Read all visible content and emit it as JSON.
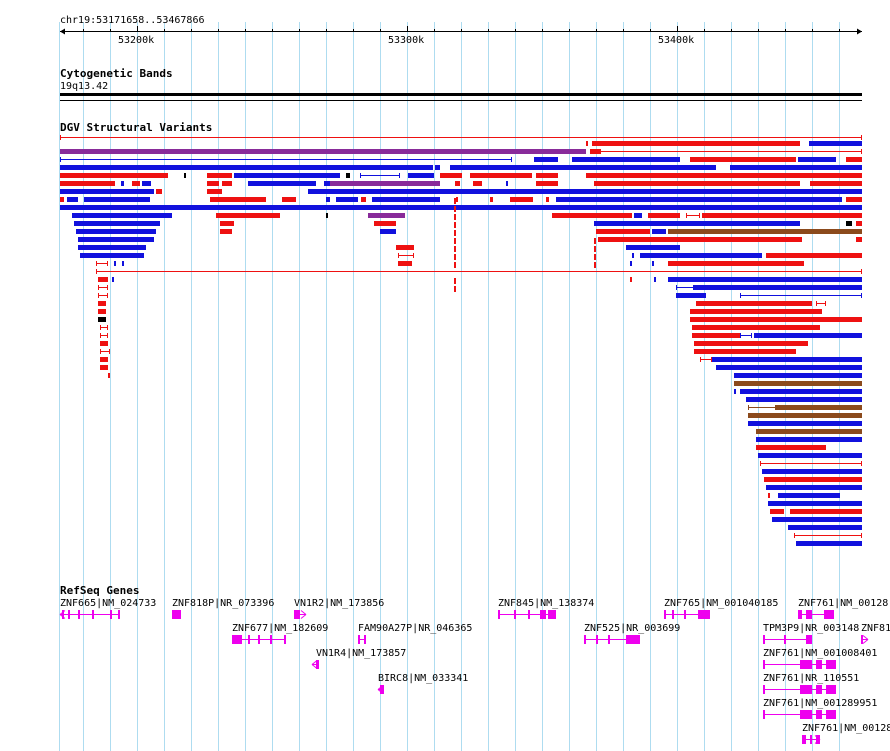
{
  "position": "chr19:53171658..53467866",
  "ruler_ticks": [
    "53200k",
    "53300k",
    "53400k"
  ],
  "tracks": {
    "cytobands": {
      "title": "Cytogenetic Bands",
      "band": "19q13.42"
    },
    "dgv": {
      "title": "DGV Structural Variants"
    },
    "refseq": {
      "title": "RefSeq Genes"
    }
  },
  "genes": [
    "ZNF665|NM_024733",
    "ZNF818P|NR_073396",
    "VN1R2|NM_173856",
    "ZNF845|NM_138374",
    "ZNF765|NM_001040185",
    "ZNF761|NM_00128",
    "ZNF677|NM_182609",
    "FAM90A27P|NR_046365",
    "ZNF525|NR_003699",
    "TPM3P9|NR_003148",
    "ZNF81",
    "VN1R4|NM_173857",
    "ZNF761|NM_001008401",
    "BIRC8|NM_033341",
    "ZNF761|NR_110551",
    "ZNF761|NM_001289951",
    "ZNF761|NM_00128"
  ],
  "colors": {
    "loss": "#ee1111",
    "gain": "#1111dd",
    "gain_loss": "#882b9a",
    "complex": "#8b4a1c",
    "gene": "#ee00ee",
    "grid": "#aedcf0"
  }
}
